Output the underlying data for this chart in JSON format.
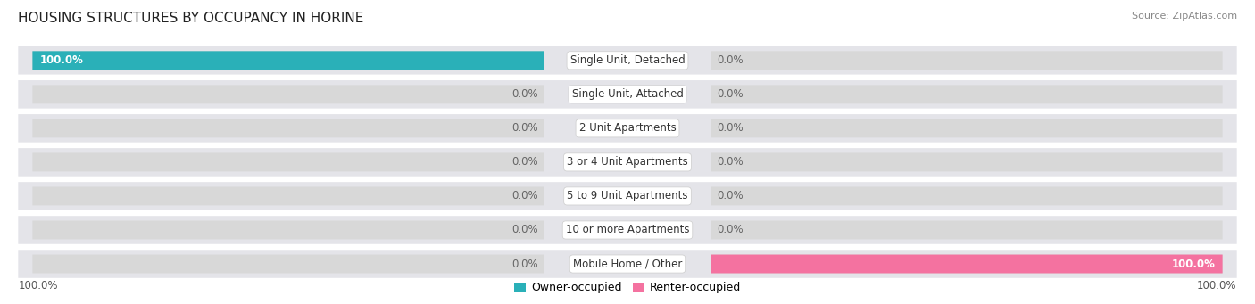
{
  "title": "HOUSING STRUCTURES BY OCCUPANCY IN HORINE",
  "source": "Source: ZipAtlas.com",
  "categories": [
    "Single Unit, Detached",
    "Single Unit, Attached",
    "2 Unit Apartments",
    "3 or 4 Unit Apartments",
    "5 to 9 Unit Apartments",
    "10 or more Apartments",
    "Mobile Home / Other"
  ],
  "owner_values": [
    100.0,
    0.0,
    0.0,
    0.0,
    0.0,
    0.0,
    0.0
  ],
  "renter_values": [
    0.0,
    0.0,
    0.0,
    0.0,
    0.0,
    0.0,
    100.0
  ],
  "owner_color": "#2ab0b8",
  "renter_color": "#f472a0",
  "bar_bg_color": "#d8d8d8",
  "row_bg_color": "#e8e8ec",
  "title_fontsize": 11,
  "source_fontsize": 8,
  "axis_label_fontsize": 8.5,
  "bar_label_fontsize": 8.5,
  "cat_label_fontsize": 8.5,
  "legend_fontsize": 9
}
